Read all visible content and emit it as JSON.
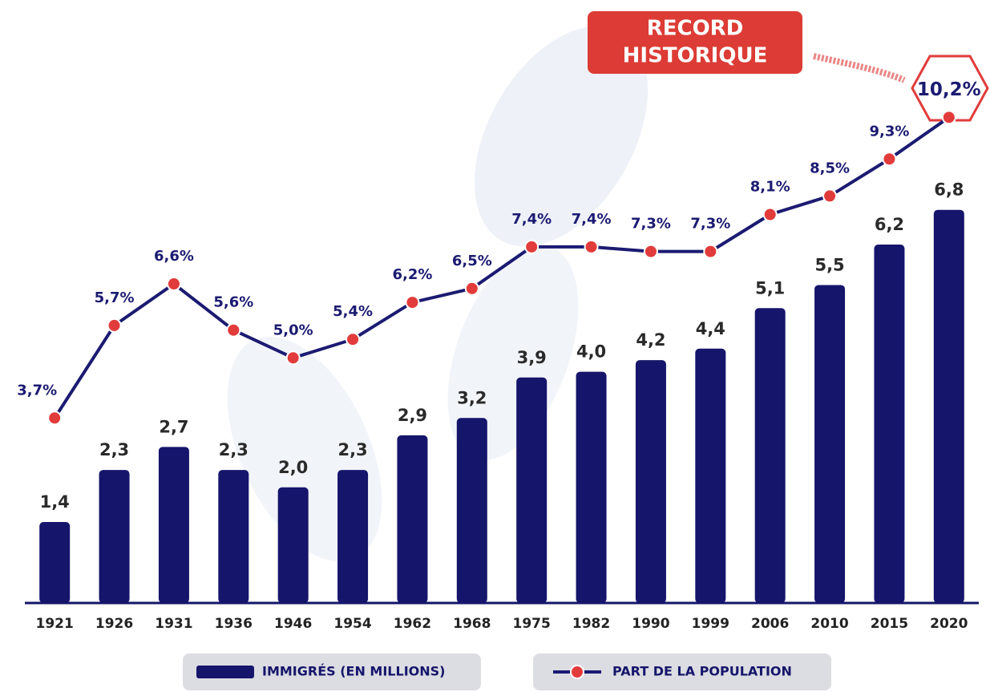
{
  "chart_data": {
    "type": "combo",
    "annotation": [
      "RECORD",
      "HISTORIQUE"
    ],
    "categories": [
      "1921",
      "1926",
      "1931",
      "1936",
      "1946",
      "1954",
      "1962",
      "1968",
      "1975",
      "1982",
      "1990",
      "1999",
      "2006",
      "2010",
      "2015",
      "2020"
    ],
    "series": [
      {
        "name": "IMMIGRÉS (EN MILLIONS)",
        "type": "bar",
        "color": "#15156b",
        "values": [
          1.4,
          2.3,
          2.7,
          2.3,
          2.0,
          2.3,
          2.9,
          3.2,
          3.9,
          4.0,
          4.2,
          4.4,
          5.1,
          5.5,
          6.2,
          6.8
        ],
        "value_labels": [
          "1,4",
          "2,3",
          "2,7",
          "2,3",
          "2,0",
          "2,3",
          "2,9",
          "3,2",
          "3,9",
          "4,0",
          "4,2",
          "4,4",
          "5,1",
          "5,5",
          "6,2",
          "6,8"
        ]
      },
      {
        "name": "PART DE LA POPULATION",
        "type": "line",
        "axis": "y2",
        "color": "#1b1b72",
        "marker_color": "#e23b3b",
        "values": [
          3.7,
          5.7,
          6.6,
          5.6,
          5.0,
          5.4,
          6.2,
          6.5,
          7.4,
          7.4,
          7.3,
          7.3,
          8.1,
          8.5,
          9.3,
          10.2
        ],
        "value_labels": [
          "3,7%",
          "5,7%",
          "6,6%",
          "5,6%",
          "5,0%",
          "5,4%",
          "6,2%",
          "6,5%",
          "7,4%",
          "7,4%",
          "7,3%",
          "7,3%",
          "8,1%",
          "8,5%",
          "9,3%",
          "10,2%"
        ]
      }
    ],
    "ylim": [
      0,
      10
    ],
    "y2lim": [
      -0.3,
      12.2
    ]
  }
}
